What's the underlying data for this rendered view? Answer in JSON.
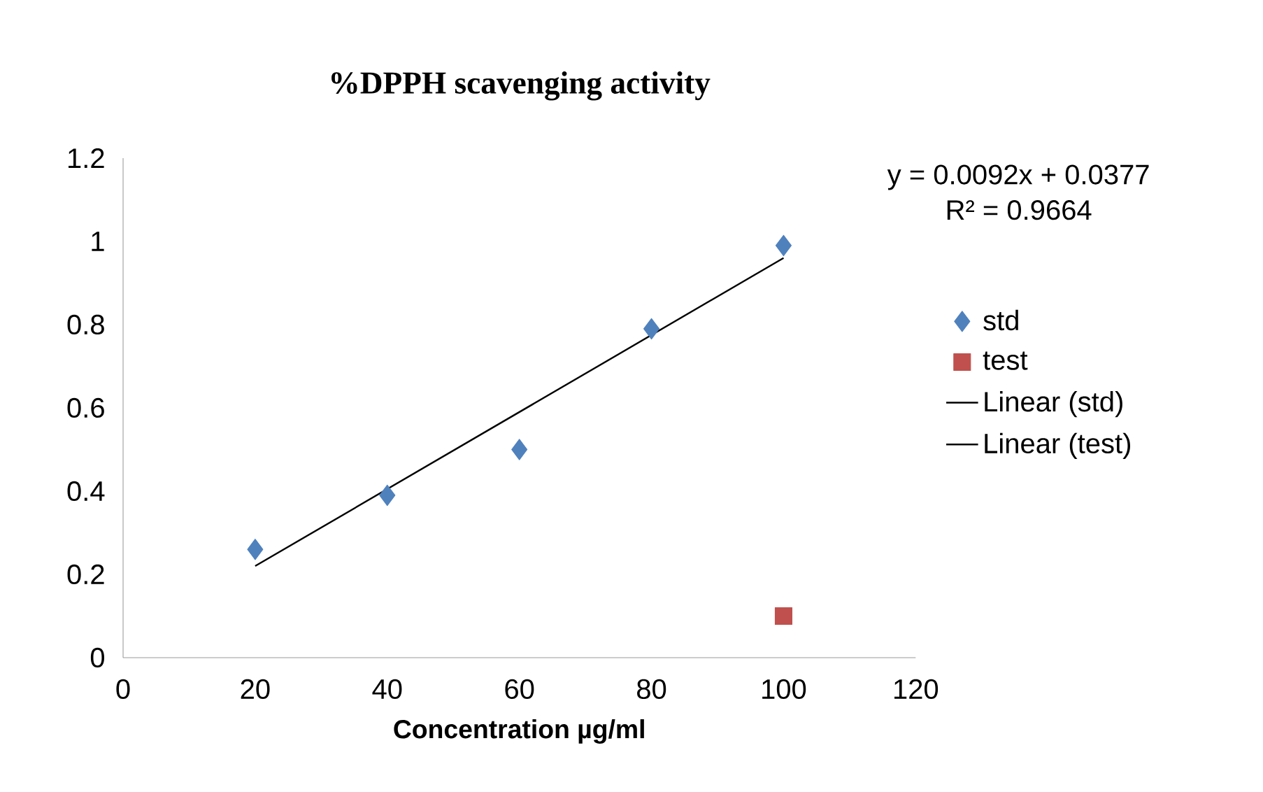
{
  "chart_data": {
    "type": "scatter",
    "title": "%DPPH scavenging activity",
    "xlabel": "Concentration µg/ml",
    "xlim": [
      0,
      120
    ],
    "xticks": [
      0,
      20,
      40,
      60,
      80,
      100,
      120
    ],
    "ylim": [
      0,
      1.2
    ],
    "yticks": [
      0,
      0.2,
      0.4,
      0.6,
      0.8,
      1,
      1.2
    ],
    "series": [
      {
        "name": "std",
        "marker": "diamond",
        "color": "#4f81bd",
        "x": [
          20,
          40,
          60,
          80,
          100
        ],
        "values": [
          0.26,
          0.39,
          0.5,
          0.79,
          0.99
        ]
      },
      {
        "name": "test",
        "marker": "square",
        "color": "#c0504d",
        "x": [
          100
        ],
        "values": [
          0.1
        ]
      },
      {
        "name": "Linear (std)",
        "type": "line",
        "marker": "none",
        "line_style": "solid",
        "color": "#000000",
        "x": [
          20,
          100
        ],
        "values": [
          0.22,
          0.96
        ]
      },
      {
        "name": "Linear (test)",
        "type": "line",
        "marker": "none",
        "line_style": "solid",
        "color": "#000000"
      }
    ],
    "annotations": [
      "y = 0.0092x + 0.0377",
      "R² = 0.9664"
    ],
    "legend": "right",
    "grid": false
  }
}
